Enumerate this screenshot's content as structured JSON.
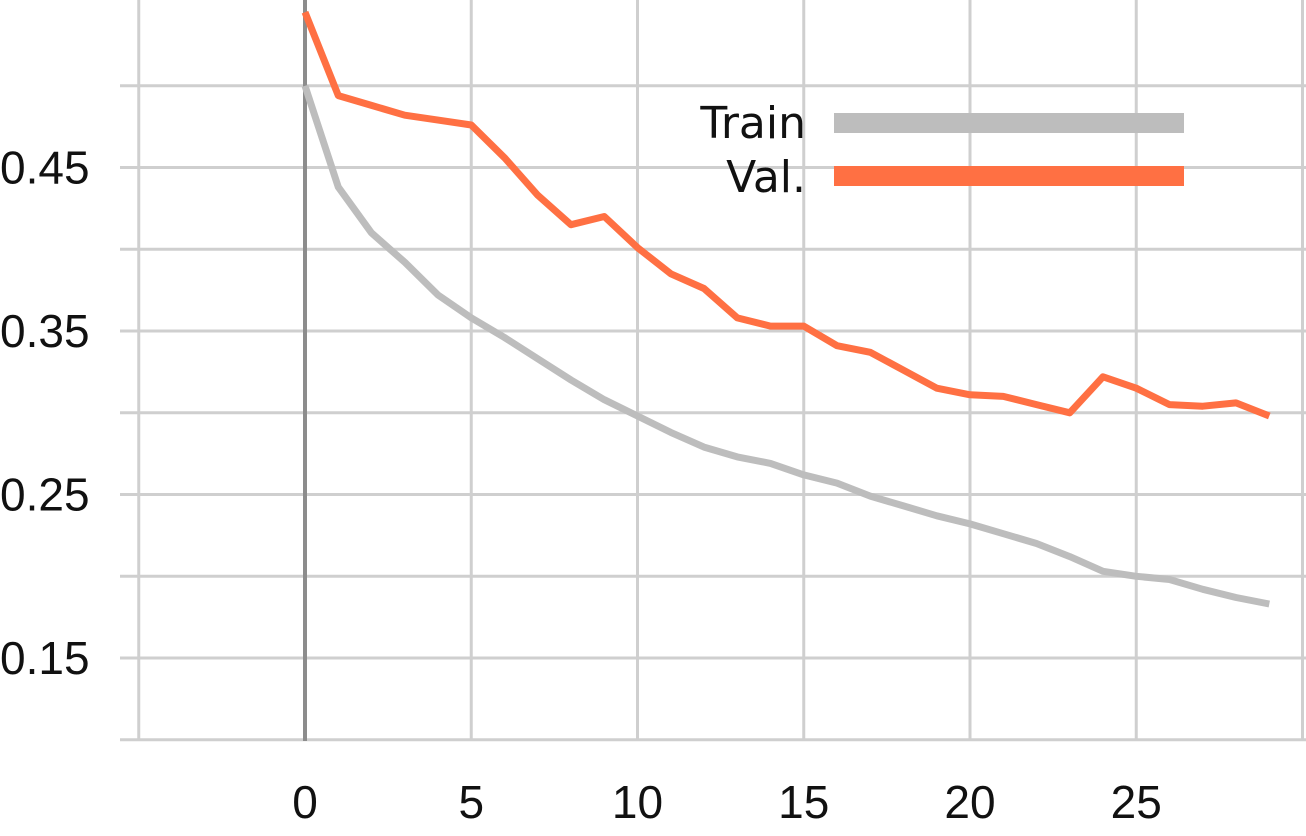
{
  "chart_data": {
    "type": "line",
    "title": "",
    "xlabel": "",
    "ylabel": "",
    "xlim": [
      -5,
      30
    ],
    "ylim": [
      0.1,
      0.5
    ],
    "x_ticks": [
      0,
      5,
      10,
      15,
      20,
      25
    ],
    "x_tick_labels": [
      "0",
      "5",
      "10",
      "15",
      "20",
      "25"
    ],
    "y_ticks": [
      0.15,
      0.25,
      0.35,
      0.45
    ],
    "y_tick_labels": [
      "0.15",
      "0.25",
      "0.35",
      "0.45"
    ],
    "grid": true,
    "legend_position": "top-right",
    "x": [
      0,
      1,
      2,
      3,
      4,
      5,
      6,
      7,
      8,
      9,
      10,
      11,
      12,
      13,
      14,
      15,
      16,
      17,
      18,
      19,
      20,
      21,
      22,
      23,
      24,
      25,
      26,
      27,
      28,
      29
    ],
    "series": [
      {
        "name": "Train",
        "color": "#bdbdbd",
        "values": [
          0.5,
          0.438,
          0.41,
          0.392,
          0.372,
          0.358,
          0.346,
          0.333,
          0.32,
          0.308,
          0.298,
          0.288,
          0.279,
          0.273,
          0.269,
          0.262,
          0.257,
          0.249,
          0.243,
          0.237,
          0.232,
          0.226,
          0.22,
          0.212,
          0.203,
          0.2,
          0.198,
          0.192,
          0.187,
          0.183
        ]
      },
      {
        "name": "Val.",
        "color": "#ff7043",
        "values": [
          0.545,
          0.494,
          0.488,
          0.482,
          0.479,
          0.476,
          0.456,
          0.433,
          0.415,
          0.42,
          0.401,
          0.385,
          0.376,
          0.358,
          0.353,
          0.353,
          0.341,
          0.337,
          0.326,
          0.315,
          0.311,
          0.31,
          0.305,
          0.3,
          0.322,
          0.315,
          0.305,
          0.304,
          0.306,
          0.298
        ]
      }
    ]
  }
}
